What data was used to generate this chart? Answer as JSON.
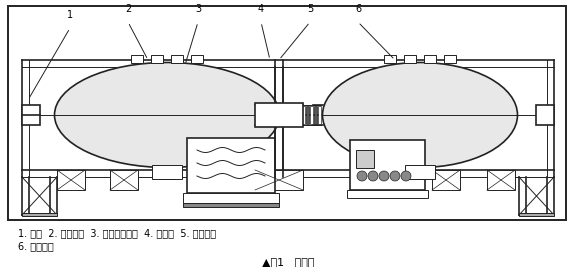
{
  "title": "图1   装配图",
  "caption_line1": "1. 机架  2. 球磨罐体  3. 球磨罐防护罩  4. 电动机  5. 传动机构",
  "caption_line2": "6. 电控系统",
  "line_color": "#222222",
  "labels": [
    "1",
    "2",
    "3",
    "4",
    "5",
    "6"
  ],
  "fig_width": 5.76,
  "fig_height": 2.67,
  "dpi": 100
}
